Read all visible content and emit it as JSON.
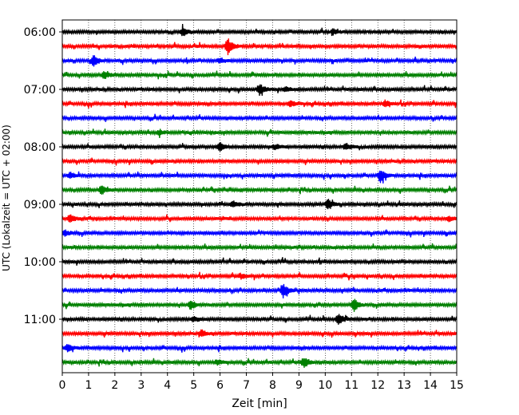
{
  "chart_data": {
    "type": "line",
    "subtype": "seismogram-helicorder",
    "title": "",
    "xlabel": "Zeit  [min]",
    "ylabel": "UTC (Lokalzeit = UTC + 02:00)",
    "xlim": [
      0,
      15
    ],
    "x_ticks": [
      "0",
      "1",
      "2",
      "3",
      "4",
      "5",
      "6",
      "7",
      "8",
      "9",
      "10",
      "11",
      "12",
      "13",
      "14",
      "15"
    ],
    "y_ticks": [
      "06:00",
      "07:00",
      "08:00",
      "09:00",
      "10:00",
      "11:00"
    ],
    "trace_start_utc": "06:00",
    "trace_interval_min": 15,
    "trace_count": 24,
    "color_cycle": [
      "#000000",
      "#ff0000",
      "#0000ff",
      "#008000"
    ],
    "vertical_grid": "dotted",
    "events": [
      {
        "trace": 0,
        "t_min": 4.6,
        "amp": 5
      },
      {
        "trace": 0,
        "t_min": 10.3,
        "amp": 3
      },
      {
        "trace": 1,
        "t_min": 6.3,
        "amp": 10
      },
      {
        "trace": 2,
        "t_min": 1.2,
        "amp": 7
      },
      {
        "trace": 2,
        "t_min": 6.0,
        "amp": 3
      },
      {
        "trace": 3,
        "t_min": 1.6,
        "amp": 5
      },
      {
        "trace": 4,
        "t_min": 7.5,
        "amp": 7
      },
      {
        "trace": 4,
        "t_min": 8.5,
        "amp": 3
      },
      {
        "trace": 5,
        "t_min": 8.7,
        "amp": 4
      },
      {
        "trace": 5,
        "t_min": 12.3,
        "amp": 4
      },
      {
        "trace": 7,
        "t_min": 3.7,
        "amp": 3
      },
      {
        "trace": 8,
        "t_min": 6.0,
        "amp": 5
      },
      {
        "trace": 8,
        "t_min": 8.1,
        "amp": 3
      },
      {
        "trace": 8,
        "t_min": 10.8,
        "amp": 4
      },
      {
        "trace": 10,
        "t_min": 0.3,
        "amp": 4
      },
      {
        "trace": 10,
        "t_min": 12.1,
        "amp": 8
      },
      {
        "trace": 11,
        "t_min": 1.5,
        "amp": 5
      },
      {
        "trace": 12,
        "t_min": 6.5,
        "amp": 4
      },
      {
        "trace": 12,
        "t_min": 10.1,
        "amp": 6
      },
      {
        "trace": 13,
        "t_min": 0.3,
        "amp": 5
      },
      {
        "trace": 13,
        "t_min": 14.7,
        "amp": 3
      },
      {
        "trace": 14,
        "t_min": 0.1,
        "amp": 4
      },
      {
        "trace": 17,
        "t_min": 6.8,
        "amp": 3
      },
      {
        "trace": 18,
        "t_min": 8.4,
        "amp": 9
      },
      {
        "trace": 19,
        "t_min": 4.9,
        "amp": 6
      },
      {
        "trace": 19,
        "t_min": 11.1,
        "amp": 8
      },
      {
        "trace": 20,
        "t_min": 10.5,
        "amp": 7
      },
      {
        "trace": 20,
        "t_min": 5.0,
        "amp": 3
      },
      {
        "trace": 21,
        "t_min": 5.3,
        "amp": 4
      },
      {
        "trace": 22,
        "t_min": 0.2,
        "amp": 5
      },
      {
        "trace": 23,
        "t_min": 9.2,
        "amp": 7
      },
      {
        "trace": 23,
        "t_min": 5.9,
        "amp": 3
      }
    ]
  }
}
